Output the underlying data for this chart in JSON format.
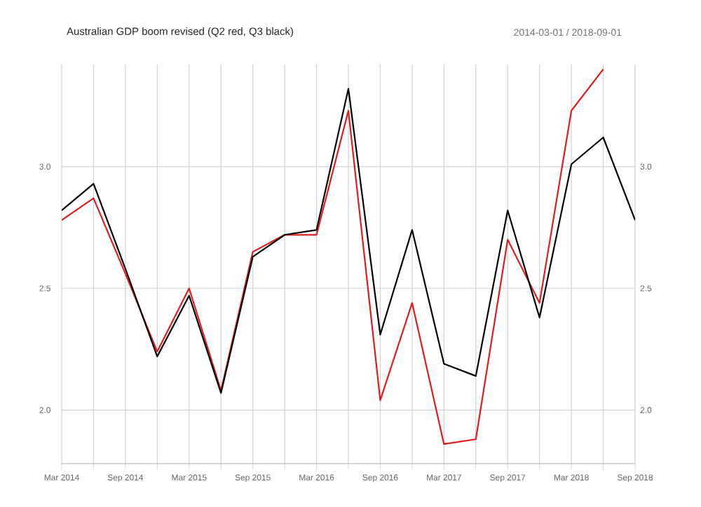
{
  "chart_data": {
    "type": "line",
    "title": "Australian GDP boom revised (Q2 red, Q3 black)",
    "subtitle": "2014-03-01 / 2018-09-01",
    "categories": [
      "Mar 2014",
      null,
      "Sep 2014",
      null,
      "Mar 2015",
      null,
      "Sep 2015",
      null,
      "Mar 2016",
      null,
      "Sep 2016",
      null,
      "Mar 2017",
      null,
      "Sep 2017",
      null,
      "Mar 2018",
      null,
      "Sep 2018"
    ],
    "series": [
      {
        "color": "#e41a1c",
        "values": [
          2.78,
          2.87,
          2.56,
          2.24,
          2.5,
          2.08,
          2.65,
          2.72,
          2.72,
          3.23,
          2.04,
          2.44,
          1.86,
          1.88,
          2.7,
          2.44,
          3.23,
          3.4,
          null
        ]
      },
      {
        "color": "#000000",
        "values": [
          2.82,
          2.93,
          2.58,
          2.22,
          2.47,
          2.07,
          2.63,
          2.72,
          2.74,
          3.32,
          2.31,
          2.74,
          2.19,
          2.14,
          2.82,
          2.38,
          3.01,
          3.12,
          2.78
        ]
      }
    ],
    "ylim": [
      1.78,
      3.42
    ],
    "yticks": [
      {
        "value": 2.0,
        "label": "2.0"
      },
      {
        "value": 2.5,
        "label": "2.5"
      },
      {
        "value": 3.0,
        "label": "3.0"
      }
    ],
    "y2lim": [
      1.78,
      3.42
    ],
    "y2ticks": [
      {
        "value": 2.0,
        "label": "2.0"
      },
      {
        "value": 2.5,
        "label": "2.5"
      },
      {
        "value": 3.0,
        "label": "3.0"
      }
    ],
    "grid": true,
    "marker": "none",
    "line_style": "solid"
  }
}
